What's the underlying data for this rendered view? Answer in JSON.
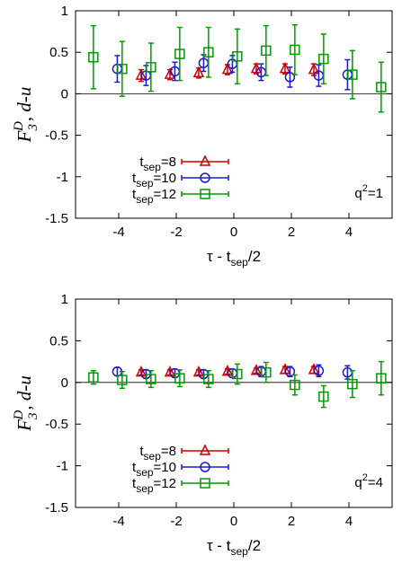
{
  "chart_data": [
    {
      "type": "scatter",
      "title": "",
      "xlabel": "τ - t_sep/2",
      "ylabel": "F_3^D, d-u",
      "xlim": [
        -5.5,
        5.5
      ],
      "ylim": [
        -1.5,
        1
      ],
      "xticks": [
        -4,
        -2,
        0,
        2,
        4
      ],
      "yticks": [
        1,
        0.5,
        0,
        -0.5,
        -1,
        -1.5
      ],
      "annotation": "q²=1",
      "legend_position": "bottom-left",
      "series": [
        {
          "name": "t_sep=8",
          "color": "#cc0000",
          "marker": "triangle",
          "x": [
            -3,
            -2,
            -1,
            0,
            1,
            2,
            3
          ],
          "y": [
            0.22,
            0.23,
            0.25,
            0.29,
            0.3,
            0.3,
            0.29
          ],
          "err": [
            0.07,
            0.06,
            0.06,
            0.06,
            0.06,
            0.06,
            0.07
          ]
        },
        {
          "name": "t_sep=10",
          "color": "#1a1acc",
          "marker": "circle",
          "x": [
            -4,
            -3,
            -2,
            -1,
            0,
            1,
            2,
            3,
            4
          ],
          "y": [
            0.3,
            0.22,
            0.27,
            0.37,
            0.36,
            0.26,
            0.2,
            0.22,
            0.23
          ],
          "err": [
            0.16,
            0.12,
            0.11,
            0.1,
            0.1,
            0.1,
            0.12,
            0.13,
            0.18
          ]
        },
        {
          "name": "t_sep=12",
          "color": "#009900",
          "marker": "square",
          "x": [
            -5,
            -4,
            -3,
            -2,
            -1,
            0,
            1,
            2,
            3,
            4,
            5
          ],
          "y": [
            0.44,
            0.3,
            0.32,
            0.48,
            0.5,
            0.45,
            0.52,
            0.53,
            0.42,
            0.23,
            0.08
          ],
          "err": [
            0.38,
            0.33,
            0.29,
            0.32,
            0.3,
            0.33,
            0.3,
            0.3,
            0.3,
            0.29,
            0.3
          ]
        }
      ]
    },
    {
      "type": "scatter",
      "title": "",
      "xlabel": "τ - t_sep/2",
      "ylabel": "F_3^D, d-u",
      "xlim": [
        -5.5,
        5.5
      ],
      "ylim": [
        -1.5,
        1
      ],
      "xticks": [
        -4,
        -2,
        0,
        2,
        4
      ],
      "yticks": [
        1,
        0.5,
        0,
        -0.5,
        -1,
        -1.5
      ],
      "annotation": "q²=4",
      "legend_position": "bottom-left",
      "series": [
        {
          "name": "t_sep=8",
          "color": "#cc0000",
          "marker": "triangle",
          "x": [
            -3,
            -2,
            -1,
            0,
            1,
            2,
            3
          ],
          "y": [
            0.12,
            0.12,
            0.12,
            0.13,
            0.14,
            0.15,
            0.15
          ],
          "err": [
            0.03,
            0.03,
            0.03,
            0.03,
            0.03,
            0.04,
            0.04
          ]
        },
        {
          "name": "t_sep=10",
          "color": "#1a1acc",
          "marker": "circle",
          "x": [
            -4,
            -3,
            -2,
            -1,
            0,
            1,
            2,
            3,
            4
          ],
          "y": [
            0.13,
            0.1,
            0.11,
            0.1,
            0.11,
            0.13,
            0.13,
            0.14,
            0.12
          ],
          "err": [
            0.05,
            0.05,
            0.05,
            0.05,
            0.05,
            0.06,
            0.06,
            0.07,
            0.08
          ]
        },
        {
          "name": "t_sep=12",
          "color": "#009900",
          "marker": "square",
          "x": [
            -5,
            -4,
            -3,
            -2,
            -1,
            0,
            1,
            2,
            3,
            4,
            5
          ],
          "y": [
            0.06,
            0.03,
            0.04,
            0.05,
            0.04,
            0.1,
            0.12,
            -0.03,
            -0.17,
            -0.02,
            0.05
          ],
          "err": [
            0.08,
            0.1,
            0.1,
            0.1,
            0.1,
            0.12,
            0.12,
            0.12,
            0.13,
            0.16,
            0.2
          ]
        }
      ]
    }
  ]
}
